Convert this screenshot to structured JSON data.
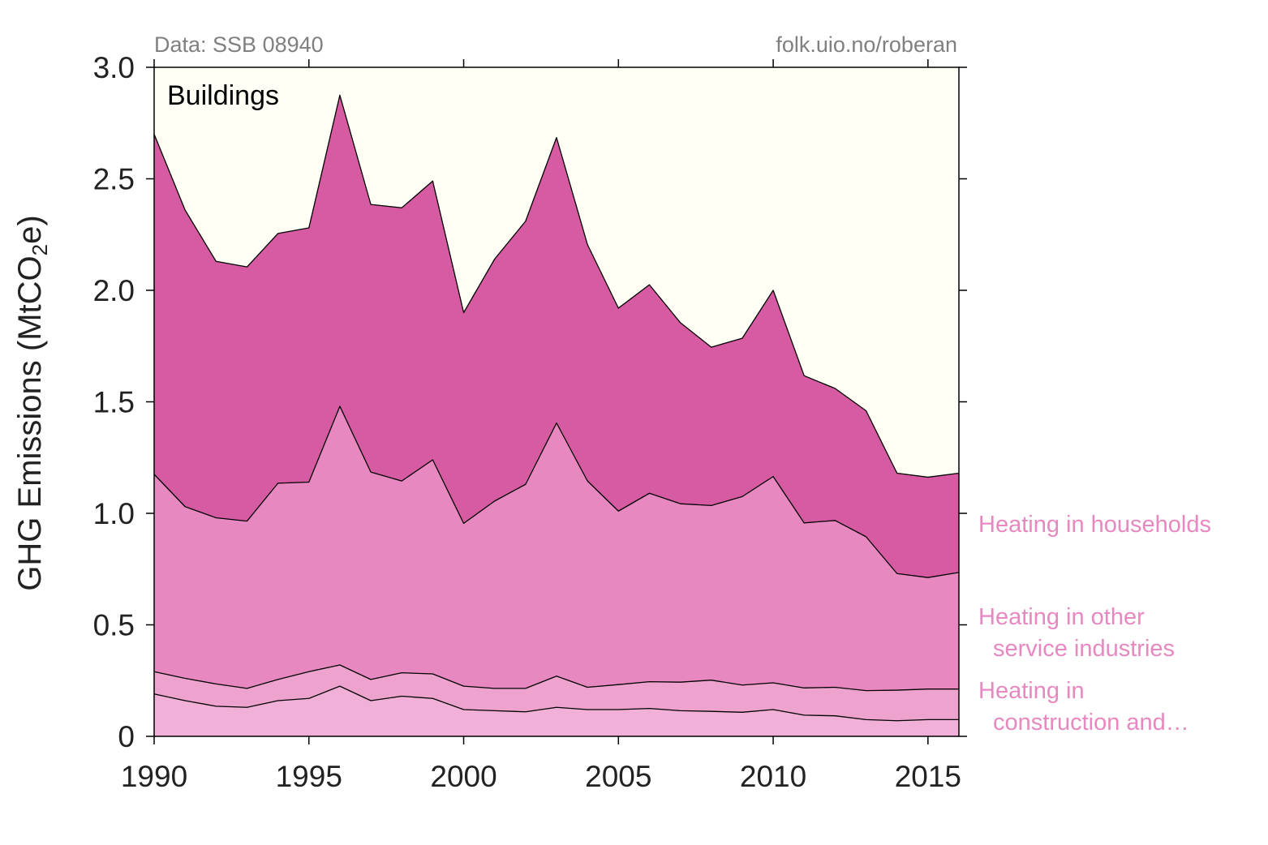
{
  "source_note": "Data: SSB 08940",
  "credit": "folk.uio.no/roberan",
  "chart_data": {
    "type": "area",
    "stacked": true,
    "title": "Buildings",
    "xlabel": "",
    "ylabel": "GHG Emissions (MtCO",
    "ylabel_sub": "2",
    "ylabel_tail": "e)",
    "xlim": [
      1990,
      2016
    ],
    "ylim": [
      0,
      3.0
    ],
    "xticks": [
      1990,
      1995,
      2000,
      2005,
      2010,
      2015
    ],
    "yticks": [
      0,
      0.5,
      1.0,
      1.5,
      2.0,
      2.5,
      3.0
    ],
    "ytick_labels": [
      "0",
      "0.5",
      "1.0",
      "1.5",
      "2.0",
      "2.5",
      "3.0"
    ],
    "background_color": "#fffff5",
    "x": [
      1990,
      1991,
      1992,
      1993,
      1994,
      1995,
      1996,
      1997,
      1998,
      1999,
      2000,
      2001,
      2002,
      2003,
      2004,
      2005,
      2006,
      2007,
      2008,
      2009,
      2010,
      2011,
      2012,
      2013,
      2014,
      2015,
      2016
    ],
    "series": [
      {
        "color": "#f1b0d7",
        "values": [
          0.19,
          0.16,
          0.135,
          0.13,
          0.16,
          0.17,
          0.225,
          0.16,
          0.18,
          0.17,
          0.12,
          0.115,
          0.11,
          0.13,
          0.12,
          0.12,
          0.125,
          0.115,
          0.112,
          0.108,
          0.12,
          0.095,
          0.092,
          0.075,
          0.07,
          0.075,
          0.075
        ]
      },
      {
        "name": "Heating in construction and…",
        "name_lines": [
          "Heating in",
          "construction and…"
        ],
        "color": "#eda3ce",
        "values": [
          0.1,
          0.1,
          0.1,
          0.085,
          0.095,
          0.12,
          0.095,
          0.095,
          0.105,
          0.11,
          0.105,
          0.1,
          0.105,
          0.14,
          0.1,
          0.112,
          0.12,
          0.128,
          0.14,
          0.122,
          0.12,
          0.122,
          0.128,
          0.13,
          0.137,
          0.137,
          0.137
        ]
      },
      {
        "name": "Heating in other service industries",
        "name_lines": [
          "Heating in other",
          "service industries"
        ],
        "color": "#e788c1",
        "values": [
          0.885,
          0.77,
          0.745,
          0.75,
          0.88,
          0.85,
          1.16,
          0.93,
          0.86,
          0.96,
          0.73,
          0.84,
          0.915,
          1.135,
          0.925,
          0.778,
          0.845,
          0.8,
          0.783,
          0.845,
          0.925,
          0.74,
          0.748,
          0.69,
          0.523,
          0.5,
          0.523
        ]
      },
      {
        "name": "Heating in households",
        "name_lines": [
          "Heating in households"
        ],
        "color": "#d65ba2",
        "values": [
          1.525,
          1.33,
          1.15,
          1.14,
          1.12,
          1.14,
          1.395,
          1.2,
          1.225,
          1.25,
          0.945,
          1.085,
          1.18,
          1.28,
          1.06,
          0.91,
          0.935,
          0.812,
          0.71,
          0.71,
          0.835,
          0.66,
          0.592,
          0.565,
          0.45,
          0.45,
          0.445
        ]
      }
    ],
    "totals_for_reference_only": false
  }
}
